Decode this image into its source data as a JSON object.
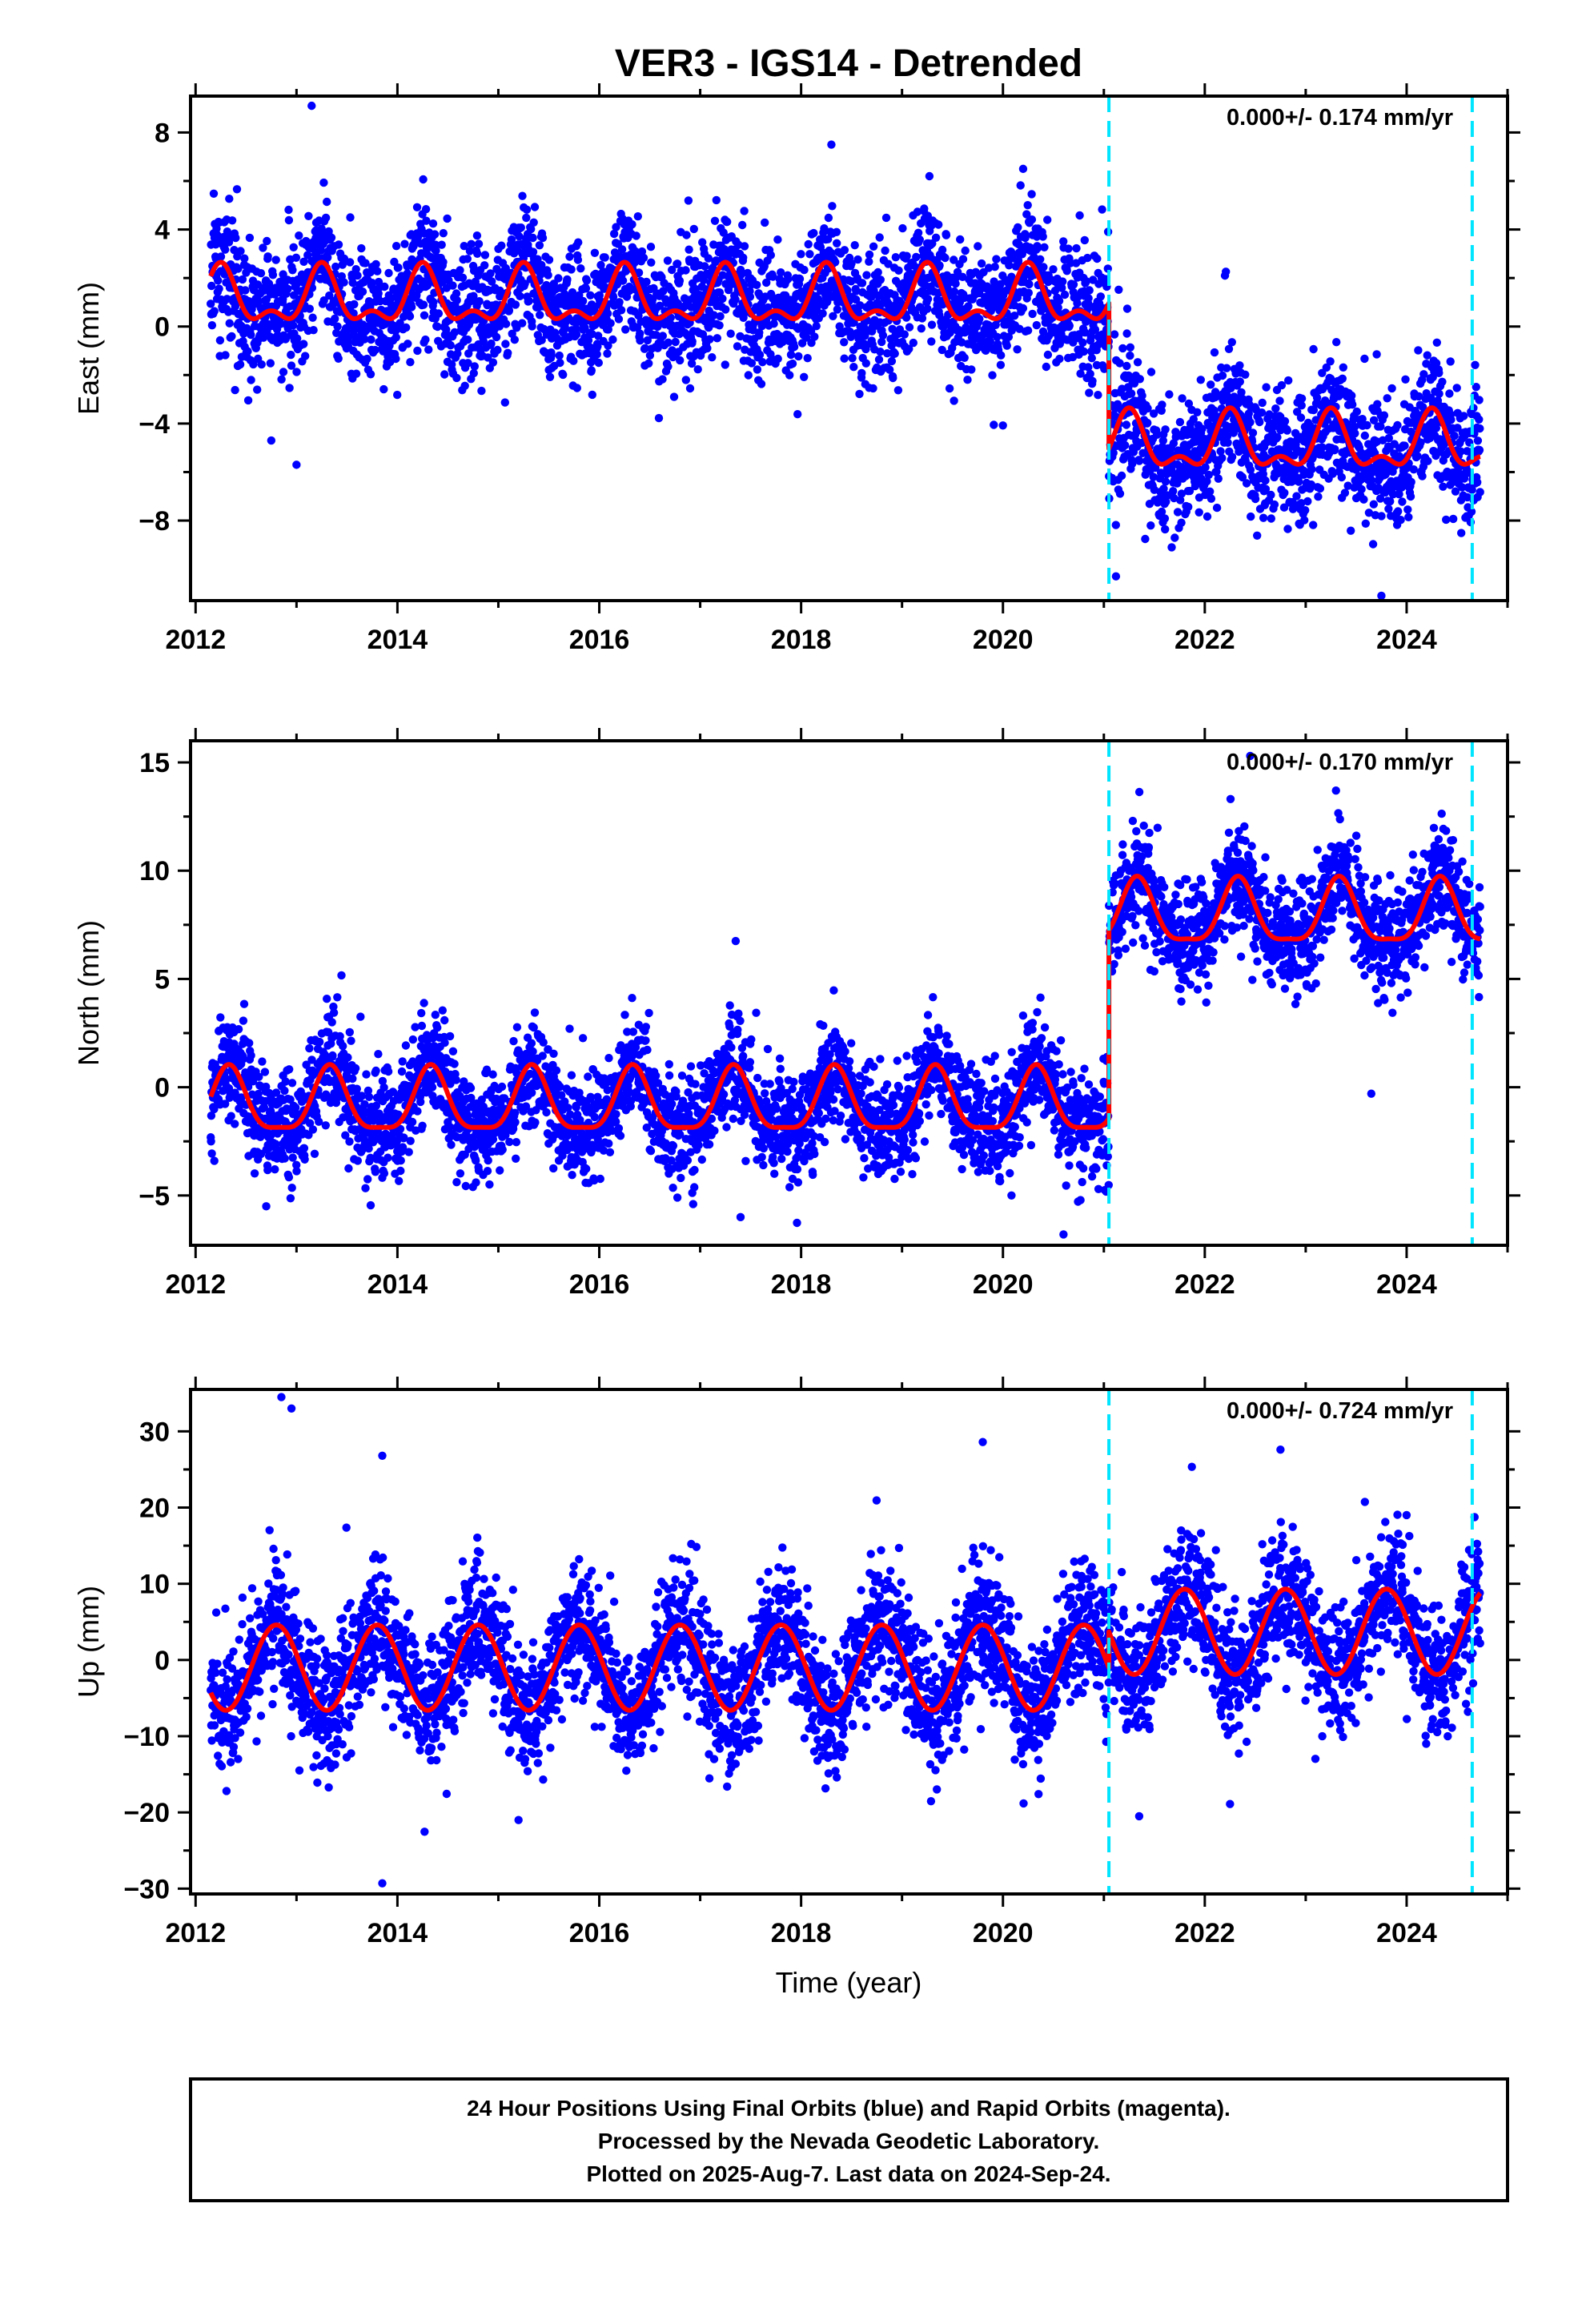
{
  "title": "VER3 - IGS14 - Detrended",
  "xlabel": "Time (year)",
  "footer": {
    "line1": "24 Hour Positions Using Final Orbits (blue) and Rapid Orbits (magenta).",
    "line2": "Processed by the Nevada Geodetic Laboratory.",
    "line3": "Plotted on 2025-Aug-7. Last data on 2024-Sep-24."
  },
  "colors": {
    "points": "#0000ff",
    "model": "#ff0000",
    "events": "#00e5ff",
    "axis": "#000000"
  },
  "chart_data": [
    {
      "type": "scatter",
      "component": "east",
      "ylabel": "East (mm)",
      "rate_text": "0.000+/- 0.174 mm/yr",
      "xlim": [
        2011.95,
        2025.0
      ],
      "ylim": [
        -11.3,
        9.5
      ],
      "yticks": [
        8,
        4,
        0,
        -4,
        -8
      ],
      "ytick_labels": [
        "8",
        "4",
        "0",
        "−4",
        "−8"
      ],
      "xticks": [
        2012,
        2014,
        2016,
        2018,
        2020,
        2022,
        2024
      ],
      "xtick_labels": [
        "2012",
        "2014",
        "2016",
        "2018",
        "2020",
        "2022",
        "2024"
      ],
      "event_lines": [
        2021.05,
        2024.65
      ],
      "data_start": 2012.15,
      "data_end": 2024.73,
      "offset_epoch": 2021.05,
      "model": {
        "before": 1.1,
        "after": -4.9,
        "annual_amp": 1.0,
        "phase_peak": 0.25,
        "semi_amp": 0.55
      },
      "noise_sd": 1.3,
      "seed": 11,
      "outliers": [
        [
          2013.15,
          9.1
        ],
        [
          2018.3,
          7.5
        ],
        [
          2020.2,
          6.5
        ],
        [
          2013.0,
          -5.7
        ],
        [
          2012.75,
          -4.7
        ],
        [
          2021.12,
          -10.3
        ],
        [
          2023.75,
          -11.1
        ],
        [
          2022.2,
          2.1
        ]
      ]
    },
    {
      "type": "scatter",
      "component": "north",
      "ylabel": "North (mm)",
      "rate_text": "0.000+/- 0.170 mm/yr",
      "xlim": [
        2011.95,
        2025.0
      ],
      "ylim": [
        -7.3,
        16.0
      ],
      "yticks": [
        15,
        10,
        5,
        0,
        -5
      ],
      "ytick_labels": [
        "15",
        "10",
        "5",
        "0",
        "−5"
      ],
      "xticks": [
        2012,
        2014,
        2016,
        2018,
        2020,
        2022,
        2024
      ],
      "xtick_labels": [
        "2012",
        "2014",
        "2016",
        "2018",
        "2020",
        "2022",
        "2024"
      ],
      "event_lines": [
        2021.05,
        2024.65
      ],
      "data_start": 2012.15,
      "data_end": 2024.73,
      "offset_epoch": 2021.05,
      "model": {
        "before": -0.8,
        "after": 7.9,
        "annual_amp": 1.45,
        "phase_peak": 0.33,
        "semi_amp": 0.4
      },
      "noise_sd": 1.2,
      "seed": 23,
      "outliers": [
        [
          2022.45,
          15.3
        ],
        [
          2023.3,
          13.7
        ],
        [
          2020.6,
          -6.8
        ],
        [
          2017.4,
          -6.0
        ],
        [
          2012.7,
          -5.5
        ],
        [
          2023.65,
          -0.3
        ]
      ]
    },
    {
      "type": "scatter",
      "component": "up",
      "ylabel": "Up (mm)",
      "rate_text": "0.000+/- 0.724 mm/yr",
      "xlim": [
        2011.95,
        2025.0
      ],
      "ylim": [
        -30.7,
        35.5
      ],
      "yticks": [
        30,
        20,
        10,
        0,
        -10,
        -20,
        -30
      ],
      "ytick_labels": [
        "30",
        "20",
        "10",
        "0",
        "−10",
        "−20",
        "−30"
      ],
      "xticks": [
        2012,
        2014,
        2016,
        2018,
        2020,
        2022,
        2024
      ],
      "xtick_labels": [
        "2012",
        "2014",
        "2016",
        "2018",
        "2020",
        "2022",
        "2024"
      ],
      "event_lines": [
        2021.05,
        2024.65
      ],
      "data_start": 2012.15,
      "data_end": 2024.73,
      "offset_epoch": 2021.05,
      "model": {
        "before": -1.0,
        "after": 3.7,
        "annual_amp": 5.6,
        "phase_peak": 0.8,
        "semi_amp": 0.0
      },
      "noise_sd": 4.3,
      "seed": 37,
      "outliers": [
        [
          2012.85,
          34.5
        ],
        [
          2012.95,
          33.0
        ],
        [
          2013.85,
          26.8
        ],
        [
          2019.8,
          28.6
        ],
        [
          2022.75,
          27.6
        ],
        [
          2013.85,
          -29.3
        ],
        [
          2015.2,
          -21.0
        ],
        [
          2021.35,
          -20.5
        ],
        [
          2022.25,
          -18.9
        ]
      ]
    }
  ]
}
